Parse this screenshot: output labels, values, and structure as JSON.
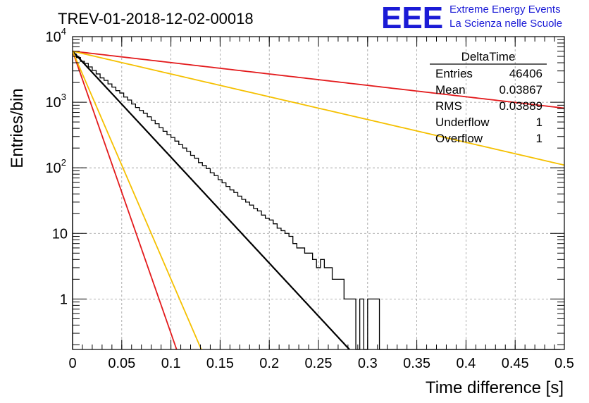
{
  "header": {
    "title": "TREV-01-2018-12-02-00018",
    "brand_logo": "EEE",
    "brand_line1": "Extreme Energy Events",
    "brand_line2": "La Scienza nelle Scuole"
  },
  "stats_box": {
    "title": "DeltaTime",
    "rows": [
      {
        "label": "Entries",
        "value": "46406"
      },
      {
        "label": "Mean",
        "value": "0.03867"
      },
      {
        "label": "RMS",
        "value": "0.03889"
      },
      {
        "label": "Underflow",
        "value": "1"
      },
      {
        "label": "Overflow",
        "value": "1"
      }
    ]
  },
  "colors": {
    "histogram": "#000000",
    "fit": "#000000",
    "red_curves": "#e31a1c",
    "yellow_curves": "#f5c000",
    "grid": "#999999",
    "brand": "#1b1bd6"
  },
  "chart_data": {
    "type": "histogram",
    "title": "TREV-01-2018-12-02-00018",
    "xlabel": "Time difference [s]",
    "ylabel": "Entries/bin",
    "xlim": [
      0,
      0.5
    ],
    "ylim": [
      0.17,
      10000
    ],
    "yscale": "log",
    "grid": true,
    "legend_position": "top-right",
    "x_ticks": [
      {
        "value": 0,
        "label": "0"
      },
      {
        "value": 0.05,
        "label": "0.05"
      },
      {
        "value": 0.1,
        "label": "0.1"
      },
      {
        "value": 0.15,
        "label": "0.15"
      },
      {
        "value": 0.2,
        "label": "0.2"
      },
      {
        "value": 0.25,
        "label": "0.25"
      },
      {
        "value": 0.3,
        "label": "0.3"
      },
      {
        "value": 0.35,
        "label": "0.35"
      },
      {
        "value": 0.4,
        "label": "0.4"
      },
      {
        "value": 0.45,
        "label": "0.45"
      },
      {
        "value": 0.5,
        "label": "0.5"
      }
    ],
    "y_ticks": [
      {
        "value": 1,
        "base": "1",
        "exp": ""
      },
      {
        "value": 10,
        "base": "10",
        "exp": ""
      },
      {
        "value": 100,
        "base": "10",
        "exp": "2"
      },
      {
        "value": 1000,
        "base": "10",
        "exp": "3"
      },
      {
        "value": 10000,
        "base": "10",
        "exp": "4"
      }
    ],
    "bin_width": 0.004,
    "bin_start": 0,
    "histogram_values": [
      5400,
      4800,
      4200,
      3900,
      3450,
      3050,
      2700,
      2350,
      2150,
      1900,
      1700,
      1500,
      1380,
      1200,
      1080,
      940,
      830,
      750,
      680,
      600,
      530,
      470,
      410,
      360,
      320,
      290,
      255,
      225,
      200,
      178,
      155,
      140,
      120,
      108,
      97,
      84,
      76,
      66,
      59,
      52,
      46,
      42,
      37,
      33,
      30,
      27,
      24,
      22,
      19,
      17,
      16,
      14,
      12,
      11,
      10,
      9,
      7,
      6,
      6,
      5,
      5,
      4,
      3,
      4,
      3,
      3,
      2,
      2,
      2,
      1,
      1,
      1,
      0,
      1,
      0,
      1,
      1,
      1,
      0,
      0,
      0,
      0,
      0,
      0,
      0,
      0,
      0,
      0,
      0,
      0,
      0,
      0,
      0,
      0,
      0,
      0,
      0,
      0,
      0,
      0,
      0,
      0,
      0,
      0,
      0,
      0,
      0,
      0,
      0,
      0,
      0,
      0,
      0,
      0,
      0,
      0,
      0,
      0,
      0,
      0,
      0,
      0,
      0,
      0
    ],
    "series": [
      {
        "color": "#000000",
        "y0": 6000,
        "slope": -37.2,
        "x_end": 0.41
      },
      {
        "color": "#e31a1c",
        "y0": 6000,
        "slope": -4.0,
        "x_end": 0.5
      },
      {
        "color": "#f5c000",
        "y0": 6000,
        "slope": -8.0,
        "x_end": 0.5
      },
      {
        "color": "#e31a1c",
        "y0": 6000,
        "slope": -99.0,
        "x_end": 0.12
      },
      {
        "color": "#f5c000",
        "y0": 6000,
        "slope": -80.0,
        "x_end": 0.15
      }
    ]
  }
}
